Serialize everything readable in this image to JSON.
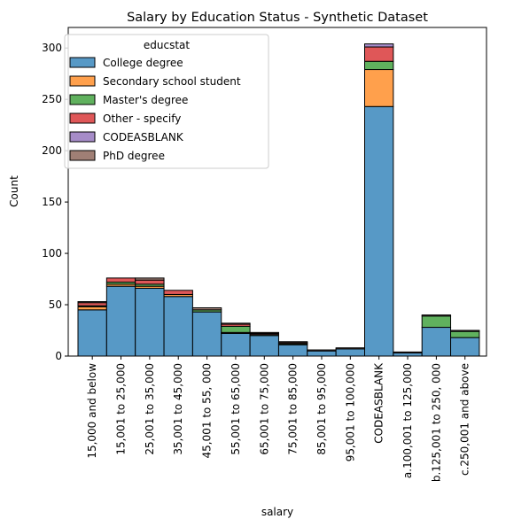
{
  "chart_data": {
    "type": "bar",
    "stacked": true,
    "title": "Salary by Education Status - Synthetic Dataset",
    "xlabel": "salary",
    "ylabel": "Count",
    "ylim": [
      0,
      320
    ],
    "yticks": [
      0,
      50,
      100,
      150,
      200,
      250,
      300
    ],
    "grid": false,
    "legend": {
      "title": "educstat",
      "placement": "top-left"
    },
    "categories": [
      "15,000 and below",
      "15,001 to 25,000",
      "25,001 to 35,000",
      "35,001 to 45,000",
      "45,001 to 55, 000",
      "55,001 to 65,000",
      "65,001 to 75,000",
      "75,001 to 85,000",
      "85,001 to 95,000",
      "95,001 to 100,000",
      "CODEASBLANK",
      "a.100,001 to 125,000",
      "b.125,001 to 250, 000",
      "c.250,001 and above"
    ],
    "series": [
      {
        "name": "College degree",
        "color": "#5799c6",
        "values": [
          45,
          68,
          66,
          58,
          43,
          22,
          20,
          11,
          5,
          7,
          243,
          3,
          28,
          18
        ]
      },
      {
        "name": "Secondary school student",
        "color": "#ffa04c",
        "values": [
          3,
          2,
          2,
          2,
          0,
          1,
          0,
          0,
          0,
          0,
          36,
          0,
          0,
          0
        ]
      },
      {
        "name": "Master's degree",
        "color": "#60b15e",
        "values": [
          1,
          2,
          2,
          0,
          2,
          6,
          1,
          1,
          0,
          0,
          8,
          0,
          11,
          6
        ]
      },
      {
        "name": "Other - specify",
        "color": "#df5758",
        "values": [
          3,
          4,
          4,
          4,
          0,
          2,
          1,
          1,
          0,
          0,
          14,
          0,
          0,
          0
        ]
      },
      {
        "name": "CODEASBLANK",
        "color": "#a68cc8",
        "values": [
          0,
          0,
          0,
          0,
          0,
          0,
          0,
          0,
          0,
          0,
          3,
          0,
          0,
          0
        ]
      },
      {
        "name": "PhD degree",
        "color": "#a07f75",
        "values": [
          1,
          0,
          2,
          0,
          2,
          1,
          1,
          1,
          1,
          1,
          0,
          1,
          1,
          1
        ]
      }
    ]
  }
}
